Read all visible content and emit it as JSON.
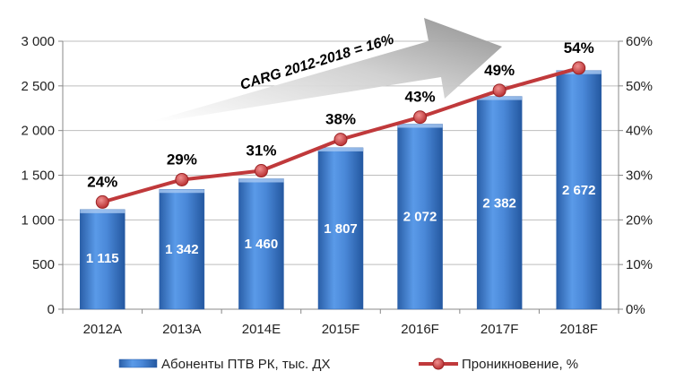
{
  "chart_data": {
    "type": "bar",
    "categories": [
      "2012A",
      "2013A",
      "2014E",
      "2015F",
      "2016F",
      "2017F",
      "2018F"
    ],
    "series": [
      {
        "name": "Абоненты ПТВ РК, тыс. ДХ",
        "type": "bar",
        "axis": "left",
        "values": [
          1115,
          1342,
          1460,
          1807,
          2072,
          2382,
          2672
        ],
        "value_labels": [
          "1 115",
          "1 342",
          "1 460",
          "1 807",
          "2 072",
          "2 382",
          "2 672"
        ],
        "color": "#3f7fd0"
      },
      {
        "name": "Проникновение, %",
        "type": "line",
        "axis": "right",
        "values": [
          24,
          29,
          31,
          38,
          43,
          49,
          54
        ],
        "value_labels": [
          "24%",
          "29%",
          "31%",
          "38%",
          "43%",
          "49%",
          "54%"
        ],
        "color": "#c0393b"
      }
    ],
    "y_left": {
      "ylim": [
        0,
        3000
      ],
      "ticks": [
        0,
        500,
        1000,
        1500,
        2000,
        2500,
        3000
      ],
      "tick_labels": [
        "0",
        "500",
        "1 000",
        "1 500",
        "2 000",
        "2 500",
        "3 000"
      ]
    },
    "y_right": {
      "ylim": [
        0,
        60
      ],
      "ticks": [
        0,
        10,
        20,
        30,
        40,
        50,
        60
      ],
      "tick_labels": [
        "0%",
        "10%",
        "20%",
        "30%",
        "40%",
        "50%",
        "60%"
      ]
    },
    "annotation": "CARG 2012-2018 = 16%",
    "grid": true,
    "legend": "bottom"
  }
}
